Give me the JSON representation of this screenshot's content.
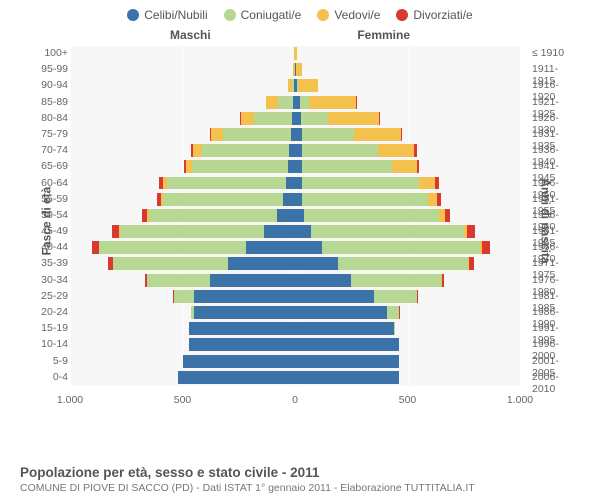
{
  "legend": {
    "items": [
      {
        "label": "Celibi/Nubili",
        "color": "#3b72a8"
      },
      {
        "label": "Coniugati/e",
        "color": "#b6d893"
      },
      {
        "label": "Vedovi/e",
        "color": "#f4c04e"
      },
      {
        "label": "Divorziati/e",
        "color": "#d83a31"
      }
    ]
  },
  "chart": {
    "type": "population-pyramid",
    "side_titles": {
      "m": "Maschi",
      "f": "Femmine"
    },
    "yaxis_left_title": "Fasce di età",
    "yaxis_right_title": "Anni di nascita",
    "xmax": 1000,
    "xticks": [
      1000,
      500,
      0,
      500,
      1000
    ],
    "xtick_labels": [
      "1.000",
      "500",
      "0",
      "500",
      "1.000"
    ],
    "colors": {
      "celibi": "#3b72a8",
      "coniugati": "#b6d893",
      "vedovi": "#f4c04e",
      "divorziati": "#d83a31",
      "bg": "#f7f7f7",
      "grid": "#ffffff"
    },
    "label_fontsize": 10.5,
    "title_fontsize": 12,
    "bands": [
      {
        "age": "100+",
        "birth": "≤ 1910",
        "m": {
          "cel": 0,
          "con": 0,
          "ved": 3,
          "div": 0
        },
        "f": {
          "cel": 0,
          "con": 0,
          "ved": 10,
          "div": 0
        }
      },
      {
        "age": "95-99",
        "birth": "1911-1915",
        "m": {
          "cel": 1,
          "con": 1,
          "ved": 7,
          "div": 0
        },
        "f": {
          "cel": 3,
          "con": 0,
          "ved": 28,
          "div": 0
        }
      },
      {
        "age": "90-94",
        "birth": "1916-1920",
        "m": {
          "cel": 3,
          "con": 10,
          "ved": 20,
          "div": 0
        },
        "f": {
          "cel": 8,
          "con": 4,
          "ved": 90,
          "div": 0
        }
      },
      {
        "age": "85-89",
        "birth": "1921-1925",
        "m": {
          "cel": 7,
          "con": 70,
          "ved": 50,
          "div": 0
        },
        "f": {
          "cel": 20,
          "con": 40,
          "ved": 210,
          "div": 2
        }
      },
      {
        "age": "80-84",
        "birth": "1926-1930",
        "m": {
          "cel": 12,
          "con": 170,
          "ved": 60,
          "div": 2
        },
        "f": {
          "cel": 25,
          "con": 120,
          "ved": 230,
          "div": 4
        }
      },
      {
        "age": "75-79",
        "birth": "1931-1935",
        "m": {
          "cel": 20,
          "con": 300,
          "ved": 55,
          "div": 5
        },
        "f": {
          "cel": 30,
          "con": 230,
          "ved": 210,
          "div": 6
        }
      },
      {
        "age": "70-74",
        "birth": "1936-1940",
        "m": {
          "cel": 25,
          "con": 390,
          "ved": 40,
          "div": 7
        },
        "f": {
          "cel": 30,
          "con": 340,
          "ved": 160,
          "div": 10
        }
      },
      {
        "age": "65-69",
        "birth": "1941-1945",
        "m": {
          "cel": 30,
          "con": 430,
          "ved": 25,
          "div": 10
        },
        "f": {
          "cel": 30,
          "con": 400,
          "ved": 110,
          "div": 12
        }
      },
      {
        "age": "60-64",
        "birth": "1946-1950",
        "m": {
          "cel": 40,
          "con": 530,
          "ved": 18,
          "div": 15
        },
        "f": {
          "cel": 30,
          "con": 520,
          "ved": 70,
          "div": 18
        }
      },
      {
        "age": "55-59",
        "birth": "1951-1955",
        "m": {
          "cel": 55,
          "con": 530,
          "ved": 10,
          "div": 18
        },
        "f": {
          "cel": 30,
          "con": 560,
          "ved": 40,
          "div": 20
        }
      },
      {
        "age": "50-54",
        "birth": "1956-1960",
        "m": {
          "cel": 80,
          "con": 570,
          "ved": 6,
          "div": 22
        },
        "f": {
          "cel": 40,
          "con": 600,
          "ved": 25,
          "div": 25
        }
      },
      {
        "age": "45-49",
        "birth": "1961-1965",
        "m": {
          "cel": 140,
          "con": 640,
          "ved": 4,
          "div": 30
        },
        "f": {
          "cel": 70,
          "con": 680,
          "ved": 15,
          "div": 35
        }
      },
      {
        "age": "40-44",
        "birth": "1966-1970",
        "m": {
          "cel": 220,
          "con": 650,
          "ved": 3,
          "div": 30
        },
        "f": {
          "cel": 120,
          "con": 700,
          "ved": 10,
          "div": 35
        }
      },
      {
        "age": "35-39",
        "birth": "1971-1975",
        "m": {
          "cel": 300,
          "con": 510,
          "ved": 1,
          "div": 18
        },
        "f": {
          "cel": 190,
          "con": 580,
          "ved": 5,
          "div": 22
        }
      },
      {
        "age": "30-34",
        "birth": "1976-1980",
        "m": {
          "cel": 380,
          "con": 280,
          "ved": 0,
          "div": 8
        },
        "f": {
          "cel": 250,
          "con": 400,
          "ved": 2,
          "div": 12
        }
      },
      {
        "age": "25-29",
        "birth": "1981-1985",
        "m": {
          "cel": 450,
          "con": 90,
          "ved": 0,
          "div": 3
        },
        "f": {
          "cel": 350,
          "con": 190,
          "ved": 0,
          "div": 5
        }
      },
      {
        "age": "20-24",
        "birth": "1986-1990",
        "m": {
          "cel": 450,
          "con": 12,
          "ved": 0,
          "div": 0
        },
        "f": {
          "cel": 410,
          "con": 50,
          "ved": 0,
          "div": 1
        }
      },
      {
        "age": "15-19",
        "birth": "1991-1995",
        "m": {
          "cel": 470,
          "con": 0,
          "ved": 0,
          "div": 0
        },
        "f": {
          "cel": 440,
          "con": 2,
          "ved": 0,
          "div": 0
        }
      },
      {
        "age": "10-14",
        "birth": "1996-2000",
        "m": {
          "cel": 470,
          "con": 0,
          "ved": 0,
          "div": 0
        },
        "f": {
          "cel": 460,
          "con": 0,
          "ved": 0,
          "div": 0
        }
      },
      {
        "age": "5-9",
        "birth": "2001-2005",
        "m": {
          "cel": 500,
          "con": 0,
          "ved": 0,
          "div": 0
        },
        "f": {
          "cel": 460,
          "con": 0,
          "ved": 0,
          "div": 0
        }
      },
      {
        "age": "0-4",
        "birth": "2006-2010",
        "m": {
          "cel": 520,
          "con": 0,
          "ved": 0,
          "div": 0
        },
        "f": {
          "cel": 460,
          "con": 0,
          "ved": 0,
          "div": 0
        }
      }
    ]
  },
  "footer": {
    "title": "Popolazione per età, sesso e stato civile - 2011",
    "subtitle": "COMUNE DI PIOVE DI SACCO (PD) - Dati ISTAT 1° gennaio 2011 - Elaborazione TUTTITALIA.IT"
  }
}
